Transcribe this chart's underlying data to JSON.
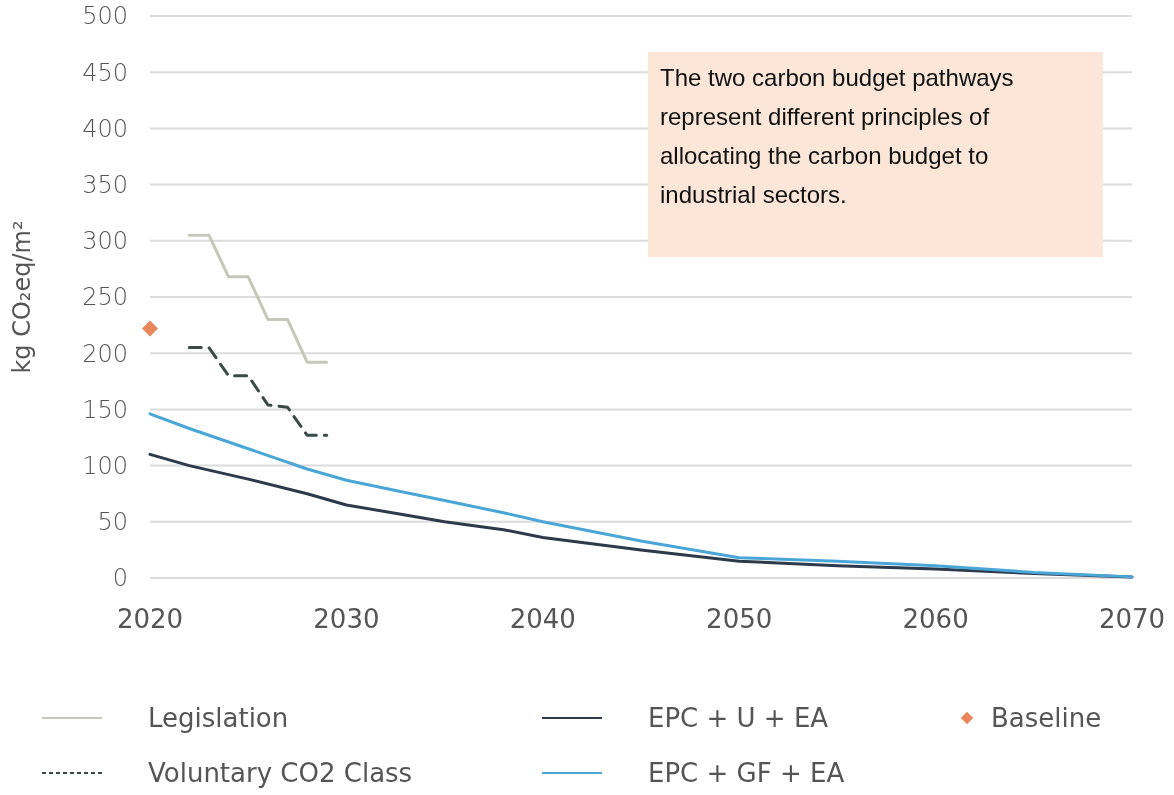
{
  "chart_data": {
    "type": "line",
    "ylabel": "kg CO₂eq/m²",
    "annotations": [
      "The two carbon budget pathways represent different principles of allocating the carbon budget to industrial sectors."
    ],
    "xlim": [
      2020,
      2070
    ],
    "xticks": [
      2020,
      2030,
      2040,
      2050,
      2060,
      2070
    ],
    "ylim": [
      0,
      500
    ],
    "yticks": [
      0,
      50,
      100,
      150,
      200,
      250,
      300,
      350,
      400,
      450,
      500
    ],
    "grid": "y",
    "legend": "bottom",
    "marker": "none",
    "series": [
      {
        "name": "Legislation",
        "color": "#c6c7bb",
        "x": [
          2022,
          2023,
          2024,
          2025,
          2026,
          2027,
          2028,
          2029
        ],
        "values": [
          305,
          305,
          268,
          268,
          230,
          230,
          192,
          192
        ]
      },
      {
        "name": "Voluntary CO2 Class",
        "color": "#3b4a47",
        "line_style": "dashed",
        "x": [
          2022,
          2023,
          2024,
          2025,
          2026,
          2027,
          2028,
          2029
        ],
        "values": [
          205,
          205,
          180,
          180,
          154,
          152,
          127,
          127
        ]
      },
      {
        "name": "EPC + U + EA",
        "color": "#2c3a4c",
        "x": [
          2020,
          2022,
          2025,
          2028,
          2030,
          2033,
          2035,
          2038,
          2040,
          2045,
          2050,
          2055,
          2060,
          2065,
          2070
        ],
        "values": [
          110,
          100,
          88,
          75,
          65,
          56,
          50,
          43,
          36,
          25,
          15,
          11,
          8,
          4,
          1
        ]
      },
      {
        "name": "EPC + GF + EA",
        "color": "#4aa6d6",
        "x": [
          2020,
          2022,
          2025,
          2028,
          2030,
          2033,
          2035,
          2038,
          2040,
          2045,
          2050,
          2055,
          2060,
          2065,
          2070
        ],
        "values": [
          146,
          133,
          115,
          97,
          87,
          76,
          69,
          58,
          50,
          33,
          18,
          15,
          11,
          5,
          1
        ]
      },
      {
        "name": "Baseline",
        "type": "scatter",
        "marker": "diamond",
        "color": "#e8875a",
        "x": [
          2020
        ],
        "values": [
          222
        ]
      }
    ]
  }
}
